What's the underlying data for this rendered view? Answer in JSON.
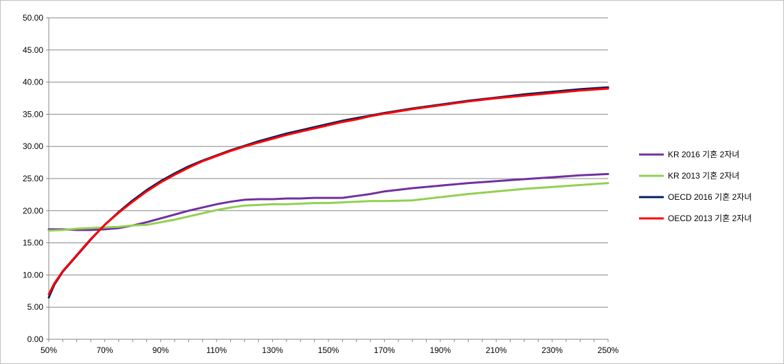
{
  "chart_data": {
    "type": "line",
    "title": "",
    "xlabel": "",
    "ylabel": "",
    "xlim": [
      50,
      250
    ],
    "ylim": [
      0,
      50
    ],
    "grid": "horizontal",
    "legend_position": "right",
    "x_tick_labels": [
      "50%",
      "70%",
      "90%",
      "110%",
      "130%",
      "150%",
      "170%",
      "190%",
      "210%",
      "230%",
      "250%"
    ],
    "y_tick_labels": [
      "0.00",
      "5.00",
      "10.00",
      "15.00",
      "20.00",
      "25.00",
      "30.00",
      "35.00",
      "40.00",
      "45.00",
      "50.00"
    ],
    "series": [
      {
        "name": "KR 2016 기혼 2자녀",
        "color": "#7030a0",
        "points": [
          [
            50,
            17.1
          ],
          [
            55,
            17.1
          ],
          [
            60,
            17.0
          ],
          [
            65,
            17.0
          ],
          [
            70,
            17.1
          ],
          [
            75,
            17.3
          ],
          [
            80,
            17.7
          ],
          [
            85,
            18.2
          ],
          [
            90,
            18.8
          ],
          [
            95,
            19.4
          ],
          [
            100,
            20.0
          ],
          [
            105,
            20.5
          ],
          [
            110,
            21.0
          ],
          [
            115,
            21.4
          ],
          [
            120,
            21.7
          ],
          [
            125,
            21.8
          ],
          [
            130,
            21.8
          ],
          [
            135,
            21.9
          ],
          [
            140,
            21.9
          ],
          [
            145,
            22.0
          ],
          [
            150,
            22.0
          ],
          [
            155,
            22.0
          ],
          [
            160,
            22.3
          ],
          [
            165,
            22.6
          ],
          [
            170,
            23.0
          ],
          [
            180,
            23.5
          ],
          [
            190,
            23.9
          ],
          [
            200,
            24.3
          ],
          [
            210,
            24.6
          ],
          [
            220,
            24.9
          ],
          [
            230,
            25.2
          ],
          [
            240,
            25.5
          ],
          [
            250,
            25.7
          ]
        ]
      },
      {
        "name": "KR 2013 기혼 2자녀",
        "color": "#92d050",
        "points": [
          [
            50,
            16.9
          ],
          [
            55,
            17.0
          ],
          [
            60,
            17.2
          ],
          [
            65,
            17.3
          ],
          [
            70,
            17.4
          ],
          [
            75,
            17.5
          ],
          [
            80,
            17.7
          ],
          [
            85,
            17.8
          ],
          [
            90,
            18.2
          ],
          [
            95,
            18.6
          ],
          [
            100,
            19.1
          ],
          [
            105,
            19.6
          ],
          [
            110,
            20.1
          ],
          [
            115,
            20.5
          ],
          [
            120,
            20.8
          ],
          [
            125,
            20.9
          ],
          [
            130,
            21.0
          ],
          [
            135,
            21.0
          ],
          [
            140,
            21.1
          ],
          [
            145,
            21.2
          ],
          [
            150,
            21.2
          ],
          [
            155,
            21.3
          ],
          [
            160,
            21.4
          ],
          [
            165,
            21.5
          ],
          [
            170,
            21.5
          ],
          [
            180,
            21.6
          ],
          [
            190,
            22.1
          ],
          [
            200,
            22.6
          ],
          [
            210,
            23.0
          ],
          [
            220,
            23.4
          ],
          [
            230,
            23.7
          ],
          [
            240,
            24.0
          ],
          [
            250,
            24.3
          ]
        ]
      },
      {
        "name": "OECD 2016 기혼 2자녀",
        "color": "#002060",
        "points": [
          [
            50,
            6.5
          ],
          [
            52,
            8.5
          ],
          [
            55,
            10.5
          ],
          [
            60,
            13.0
          ],
          [
            65,
            15.5
          ],
          [
            70,
            17.8
          ],
          [
            75,
            19.8
          ],
          [
            80,
            21.6
          ],
          [
            85,
            23.2
          ],
          [
            90,
            24.6
          ],
          [
            95,
            25.8
          ],
          [
            100,
            26.9
          ],
          [
            105,
            27.8
          ],
          [
            110,
            28.6
          ],
          [
            115,
            29.4
          ],
          [
            120,
            30.1
          ],
          [
            125,
            30.8
          ],
          [
            130,
            31.4
          ],
          [
            135,
            32.0
          ],
          [
            140,
            32.5
          ],
          [
            145,
            33.0
          ],
          [
            150,
            33.5
          ],
          [
            155,
            34.0
          ],
          [
            160,
            34.4
          ],
          [
            165,
            34.8
          ],
          [
            170,
            35.2
          ],
          [
            180,
            35.9
          ],
          [
            190,
            36.5
          ],
          [
            200,
            37.1
          ],
          [
            210,
            37.6
          ],
          [
            220,
            38.1
          ],
          [
            230,
            38.5
          ],
          [
            240,
            38.9
          ],
          [
            250,
            39.2
          ]
        ]
      },
      {
        "name": "OECD 2013 기혼 2자녀",
        "color": "#ff0000",
        "points": [
          [
            50,
            7.0
          ],
          [
            52,
            8.7
          ],
          [
            55,
            10.6
          ],
          [
            60,
            13.1
          ],
          [
            65,
            15.6
          ],
          [
            70,
            17.8
          ],
          [
            75,
            19.7
          ],
          [
            80,
            21.4
          ],
          [
            85,
            23.0
          ],
          [
            90,
            24.4
          ],
          [
            95,
            25.6
          ],
          [
            100,
            26.7
          ],
          [
            105,
            27.7
          ],
          [
            110,
            28.5
          ],
          [
            115,
            29.3
          ],
          [
            120,
            30.0
          ],
          [
            125,
            30.6
          ],
          [
            130,
            31.2
          ],
          [
            135,
            31.8
          ],
          [
            140,
            32.3
          ],
          [
            145,
            32.8
          ],
          [
            150,
            33.3
          ],
          [
            155,
            33.8
          ],
          [
            160,
            34.2
          ],
          [
            165,
            34.7
          ],
          [
            170,
            35.1
          ],
          [
            180,
            35.8
          ],
          [
            190,
            36.4
          ],
          [
            200,
            37.0
          ],
          [
            210,
            37.5
          ],
          [
            220,
            37.9
          ],
          [
            230,
            38.3
          ],
          [
            240,
            38.7
          ],
          [
            250,
            39.0
          ]
        ]
      }
    ]
  }
}
